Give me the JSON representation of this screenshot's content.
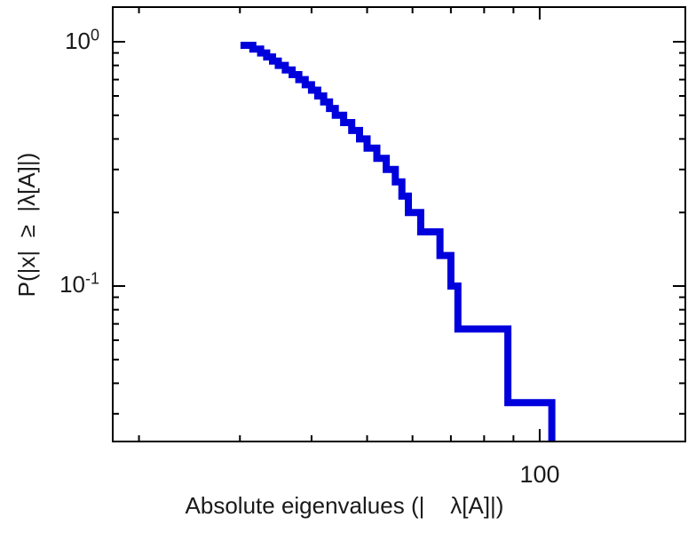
{
  "chart_data": {
    "type": "line",
    "subtype": "ccdf-staircase",
    "title": "",
    "xlabel": "Absolute eigenvalues (|    λ[A]|)",
    "ylabel": "P(|x|  ≥  |λ[A]|)",
    "x_scale": "log",
    "y_scale": "log",
    "xlim": [
      18,
      179.5
    ],
    "ylim": [
      0.0231,
      1.386
    ],
    "x_ticks": [
      {
        "value": 100,
        "label": "100"
      }
    ],
    "y_ticks": [
      {
        "value": 1,
        "base": "10",
        "exp": "0"
      },
      {
        "value": 0.1,
        "base": "10",
        "exp": "-1"
      }
    ],
    "grid": false,
    "legend": "none",
    "line_color": "#0000dd",
    "line_width": 8,
    "axis_color": "#000000",
    "n": 30,
    "eigenvalues_desc": [
      105,
      88,
      72,
      70,
      67,
      62,
      59,
      57.5,
      56,
      54,
      52,
      50,
      48.5,
      47,
      45.5,
      44,
      43,
      42,
      41,
      40,
      39,
      38,
      37,
      36,
      35,
      34.2,
      33.4,
      32.6,
      31.6,
      30.5
    ],
    "ccdf_note": "P(|x| >= |lambda[A]|) = k/30 for k-th largest eigenvalue"
  }
}
